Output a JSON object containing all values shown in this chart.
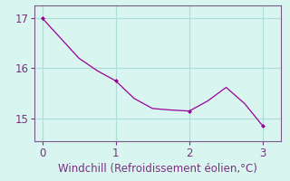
{
  "x": [
    0.0,
    0.25,
    0.5,
    0.75,
    1.0,
    1.25,
    1.5,
    1.75,
    2.0,
    2.25,
    2.5,
    2.75,
    3.0
  ],
  "y": [
    17.0,
    16.6,
    16.2,
    15.95,
    15.75,
    15.4,
    15.2,
    15.17,
    15.15,
    15.35,
    15.62,
    15.3,
    14.85
  ],
  "line_color": "#990099",
  "marker": "D",
  "marker_size": 2.5,
  "marker_indices": [
    0,
    4,
    8,
    12
  ],
  "xlabel": "Windchill (Refroidissement éolien,°C)",
  "xlim": [
    -0.1,
    3.25
  ],
  "ylim": [
    14.55,
    17.25
  ],
  "yticks": [
    15,
    16,
    17
  ],
  "xticks": [
    0,
    1,
    2,
    3
  ],
  "bg_color": "#d8f5f0",
  "grid_color": "#b0ddd8",
  "spine_color": "#7a5c8a",
  "tick_color": "#7a3080",
  "label_color": "#7a3080",
  "xlabel_fontsize": 8.5,
  "tick_fontsize": 8.5
}
